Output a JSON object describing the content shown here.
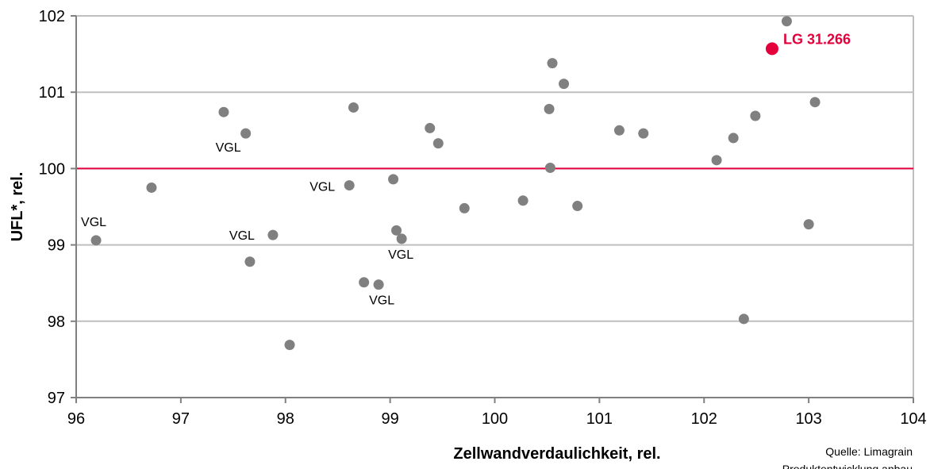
{
  "chart_data": {
    "type": "scatter",
    "xlabel": "Zellwandverdaulichkeit, rel.",
    "ylabel": "UFL*, rel.",
    "xlim": [
      96,
      104
    ],
    "ylim": [
      97,
      102
    ],
    "x_ticks": [
      96,
      97,
      98,
      99,
      100,
      101,
      102,
      103,
      104
    ],
    "y_ticks": [
      97,
      98,
      99,
      100,
      101,
      102
    ],
    "grid": "horizontal",
    "reference_line": {
      "y": 100,
      "color": "#e3003b"
    },
    "series": [
      {
        "color": "#808080",
        "points": [
          {
            "x": 96.19,
            "y": 99.06,
            "label": "VGL"
          },
          {
            "x": 96.72,
            "y": 99.75
          },
          {
            "x": 97.41,
            "y": 100.74
          },
          {
            "x": 97.62,
            "y": 100.46,
            "label": "VGL"
          },
          {
            "x": 97.66,
            "y": 98.78
          },
          {
            "x": 97.88,
            "y": 99.13,
            "label": "VGL"
          },
          {
            "x": 98.04,
            "y": 97.69
          },
          {
            "x": 98.61,
            "y": 99.78,
            "label": "VGL"
          },
          {
            "x": 98.65,
            "y": 100.8
          },
          {
            "x": 98.75,
            "y": 98.51
          },
          {
            "x": 98.89,
            "y": 98.48,
            "label": "VGL"
          },
          {
            "x": 99.03,
            "y": 99.86
          },
          {
            "x": 99.06,
            "y": 99.19
          },
          {
            "x": 99.11,
            "y": 99.08,
            "label": "VGL"
          },
          {
            "x": 99.38,
            "y": 100.53
          },
          {
            "x": 99.46,
            "y": 100.33
          },
          {
            "x": 99.71,
            "y": 99.48
          },
          {
            "x": 100.27,
            "y": 99.58
          },
          {
            "x": 100.52,
            "y": 100.78
          },
          {
            "x": 100.53,
            "y": 100.01
          },
          {
            "x": 100.55,
            "y": 101.38
          },
          {
            "x": 100.66,
            "y": 101.11
          },
          {
            "x": 100.79,
            "y": 99.51
          },
          {
            "x": 101.19,
            "y": 100.5
          },
          {
            "x": 101.42,
            "y": 100.46
          },
          {
            "x": 102.12,
            "y": 100.11
          },
          {
            "x": 102.28,
            "y": 100.4
          },
          {
            "x": 102.38,
            "y": 98.03
          },
          {
            "x": 102.49,
            "y": 100.69
          },
          {
            "x": 102.79,
            "y": 101.93
          },
          {
            "x": 103.0,
            "y": 99.27
          },
          {
            "x": 103.06,
            "y": 100.87
          }
        ]
      },
      {
        "color": "#e3003b",
        "points": [
          {
            "x": 102.65,
            "y": 101.57,
            "label": "LG 31.266"
          }
        ]
      }
    ]
  },
  "source": "Quelle:  Limagrain",
  "footnote": "Produktentwicklung anbau"
}
